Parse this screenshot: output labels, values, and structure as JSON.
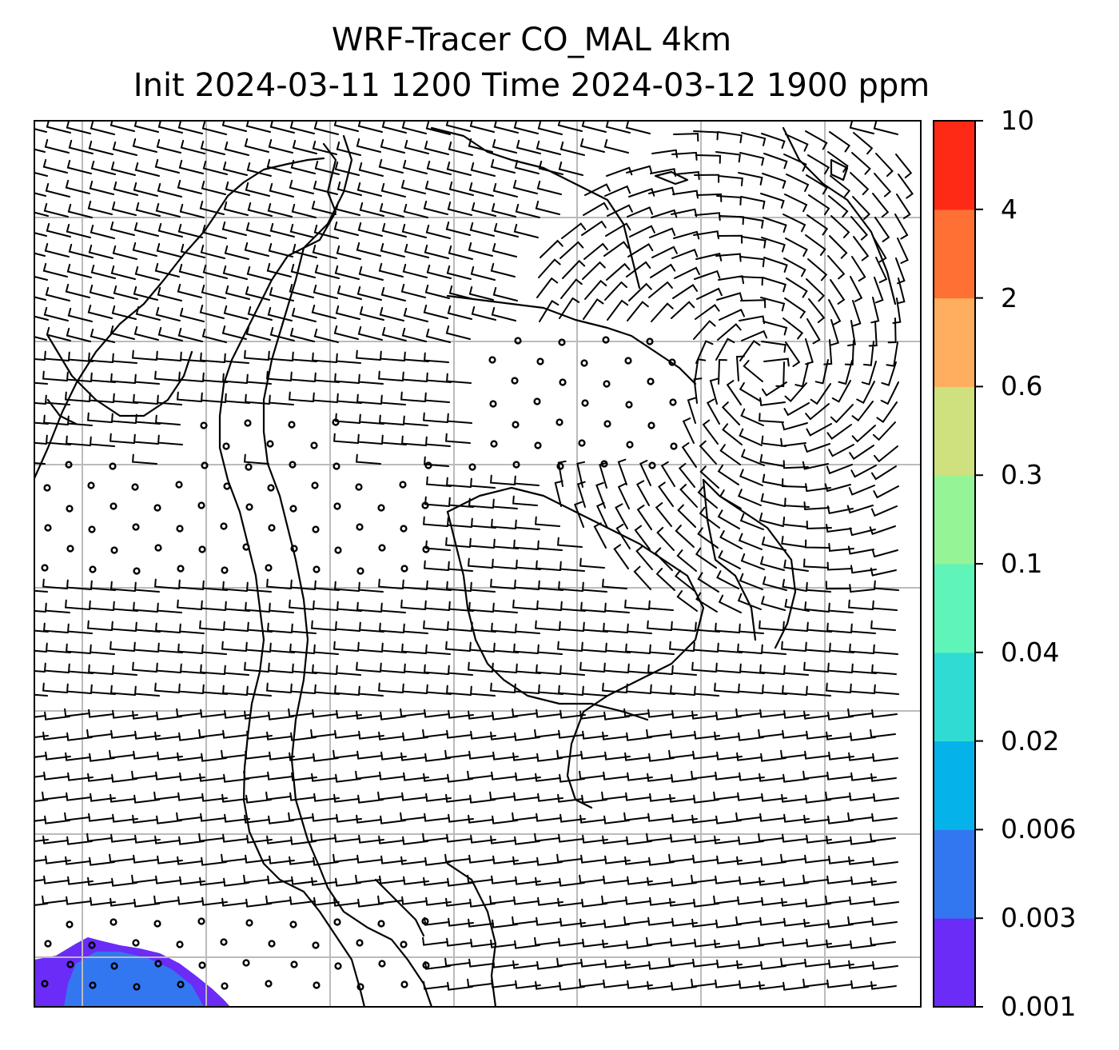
{
  "title": {
    "line1": "WRF-Tracer CO_MAL 4km",
    "line2": "Init 2024-03-11 1200 Time 2024-03-12 1900 ppm"
  },
  "colorbar": {
    "tick_labels": [
      "0.001",
      "0.003",
      "0.006",
      "0.02",
      "0.04",
      "0.1",
      "0.3",
      "0.6",
      "2",
      "4",
      "10"
    ],
    "colors": [
      "#6a2cf6",
      "#3377f0",
      "#05b3ea",
      "#2fdcd3",
      "#5ff5b8",
      "#95f495",
      "#cfe07e",
      "#ffad5f",
      "#ff7035",
      "#ff2a15"
    ]
  },
  "map": {
    "plume_color_light": "#6a2cf6",
    "plume_color_dark": "#3377f0",
    "grid_color": "#bbbbbb"
  }
}
